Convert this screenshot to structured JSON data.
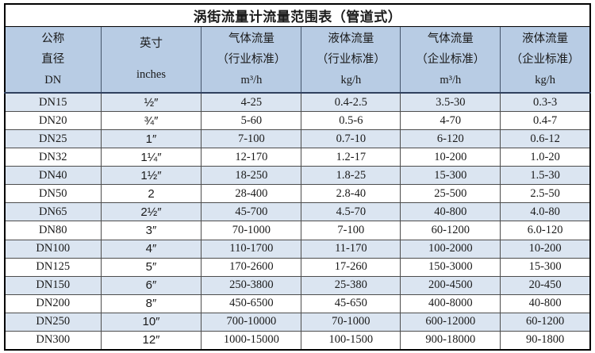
{
  "table": {
    "title": "涡街流量计流量范围表（管道式）",
    "header": [
      {
        "lines": [
          "公称",
          "直径",
          "DN"
        ]
      },
      {
        "lines": [
          "英寸",
          "inches"
        ]
      },
      {
        "lines": [
          "气体流量",
          "（行业标准）",
          "m³/h"
        ]
      },
      {
        "lines": [
          "液体流量",
          "（行业标准）",
          "kg/h"
        ]
      },
      {
        "lines": [
          "气体流量",
          "（企业标准）",
          "m³/h"
        ]
      },
      {
        "lines": [
          "液体流量",
          "（企业标准）",
          "kg/h"
        ]
      }
    ],
    "rows": [
      [
        "DN15",
        "½″",
        "4-25",
        "0.4-2.5",
        "3.5-30",
        "0.3-3"
      ],
      [
        "DN20",
        "¾″",
        "5-60",
        "0.5-6",
        "4-70",
        "0.4-7"
      ],
      [
        "DN25",
        "1″",
        "7-100",
        "0.7-10",
        "6-120",
        "0.6-12"
      ],
      [
        "DN32",
        "1¼″",
        "12-170",
        "1.2-17",
        "10-200",
        "1.0-20"
      ],
      [
        "DN40",
        "1½″",
        "18-250",
        "1.8-25",
        "15-300",
        "1.5-30"
      ],
      [
        "DN50",
        "2",
        "28-400",
        "2.8-40",
        "25-500",
        "2.5-50"
      ],
      [
        "DN65",
        "2½″",
        "45-700",
        "4.5-70",
        "40-800",
        "4.0-80"
      ],
      [
        "DN80",
        "3″",
        "70-1000",
        "7-100",
        "60-1200",
        "6.0-120"
      ],
      [
        "DN100",
        "4″",
        "110-1700",
        "11-170",
        "100-2000",
        "10-200"
      ],
      [
        "DN125",
        "5″",
        "170-2600",
        "17-260",
        "150-3000",
        "15-300"
      ],
      [
        "DN150",
        "6″",
        "250-3800",
        "25-380",
        "200-4500",
        "20-450"
      ],
      [
        "DN200",
        "8″",
        "450-6500",
        "45-650",
        "400-8000",
        "40-800"
      ],
      [
        "DN250",
        "10″",
        "700-10000",
        "70-1000",
        "600-12000",
        "60-1200"
      ],
      [
        "DN300",
        "12″",
        "1000-15000",
        "100-1500",
        "900-18000",
        "90-1800"
      ]
    ]
  },
  "colors": {
    "header_bg": "#b8cce4",
    "alt_row_bg": "#dbe5f1",
    "outer_border": "#000000",
    "inner_border": "#4d4d4d"
  }
}
